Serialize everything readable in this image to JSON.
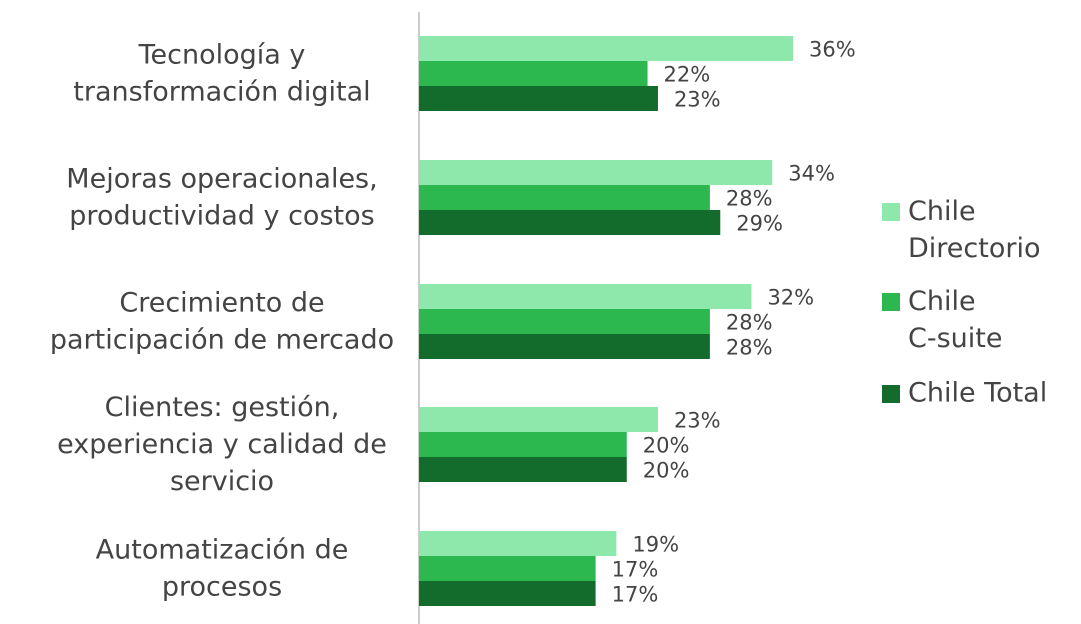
{
  "chart_data": {
    "type": "bar",
    "orientation": "horizontal",
    "categories": [
      "Tecnología y\ntransformación digital",
      "Mejoras operacionales,\nproductividad y costos",
      "Crecimiento de\nparticipación de mercado",
      "Clientes: gestión,\nexperiencia y calidad de\nservicio",
      "Automatización de\nprocesos"
    ],
    "series": [
      {
        "name": "Chile\nDirectorio",
        "color": "#8ee8ac",
        "values": [
          36,
          34,
          32,
          23,
          19
        ],
        "value_labels": [
          "36%",
          "34%",
          "32%",
          "23%",
          "19%"
        ]
      },
      {
        "name": "Chile\nC-suite",
        "color": "#2db84f",
        "values": [
          22,
          28,
          28,
          20,
          17
        ],
        "value_labels": [
          "22%",
          "28%",
          "28%",
          "20%",
          "17%"
        ]
      },
      {
        "name": "Chile Total",
        "color": "#136b2c",
        "values": [
          23,
          29,
          28,
          20,
          17
        ],
        "value_labels": [
          "23%",
          "29%",
          "28%",
          "20%",
          "17%"
        ]
      }
    ],
    "legend": "right"
  }
}
